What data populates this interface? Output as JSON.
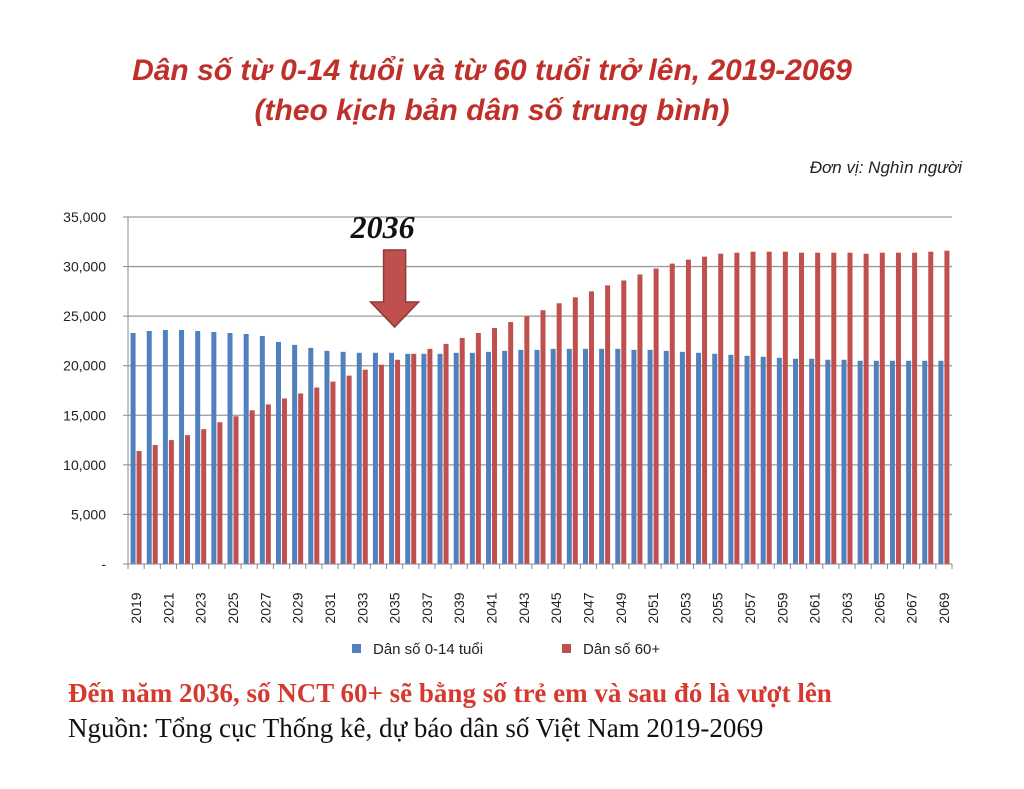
{
  "title_line1": "Dân số từ 0-14 tuổi và từ 60 tuổi trở lên, 2019-2069",
  "title_line2": "(theo kịch bản dân số trung bình)",
  "unit": "Đơn vị: Nghìn người",
  "note": "Đến năm 2036, số NCT 60+ sẽ bằng số trẻ em và sau đó là vượt lên",
  "source": "Nguồn: Tổng cục Thống kê, dự báo dân số Việt Nam 2019-2069",
  "chart_data": {
    "type": "bar",
    "title": "Dân số từ 0-14 tuổi và từ 60 tuổi trở lên, 2019-2069",
    "xlabel": "",
    "ylabel": "Nghìn người",
    "ylim": [
      0,
      35000
    ],
    "yticks": [
      0,
      5000,
      10000,
      15000,
      20000,
      25000,
      30000,
      35000
    ],
    "ytick_labels": [
      "-",
      "5,000",
      "10,000",
      "15,000",
      "20,000",
      "25,000",
      "30,000",
      "35,000"
    ],
    "grid": true,
    "legend": "bottom",
    "annotation": {
      "label": "2036",
      "year": 2036,
      "color": "#c0504d"
    },
    "x_start": 2019,
    "x_end": 2069,
    "series": [
      {
        "name": "Dân số 0-14 tuổi",
        "color": "#4f81bd",
        "values": [
          23300,
          23500,
          23600,
          23600,
          23500,
          23400,
          23300,
          23200,
          23000,
          22400,
          22100,
          21800,
          21500,
          21400,
          21300,
          21300,
          21300,
          21200,
          21200,
          21200,
          21300,
          21300,
          21400,
          21500,
          21600,
          21600,
          21700,
          21700,
          21700,
          21700,
          21700,
          21600,
          21600,
          21500,
          21400,
          21300,
          21200,
          21100,
          21000,
          20900,
          20800,
          20700,
          20700,
          20600,
          20600,
          20500,
          20500,
          20500,
          20500,
          20500,
          20500
        ]
      },
      {
        "name": "Dân số 60+",
        "color": "#c0504d",
        "values": [
          11400,
          12000,
          12500,
          13000,
          13600,
          14300,
          14900,
          15500,
          16100,
          16700,
          17200,
          17800,
          18400,
          19000,
          19600,
          20100,
          20600,
          21200,
          21700,
          22200,
          22800,
          23300,
          23800,
          24400,
          25000,
          25600,
          26300,
          26900,
          27500,
          28100,
          28600,
          29200,
          29800,
          30300,
          30700,
          31000,
          31300,
          31400,
          31500,
          31500,
          31500,
          31400,
          31400,
          31400,
          31400,
          31300,
          31400,
          31400,
          31400,
          31500,
          31600
        ]
      }
    ]
  }
}
